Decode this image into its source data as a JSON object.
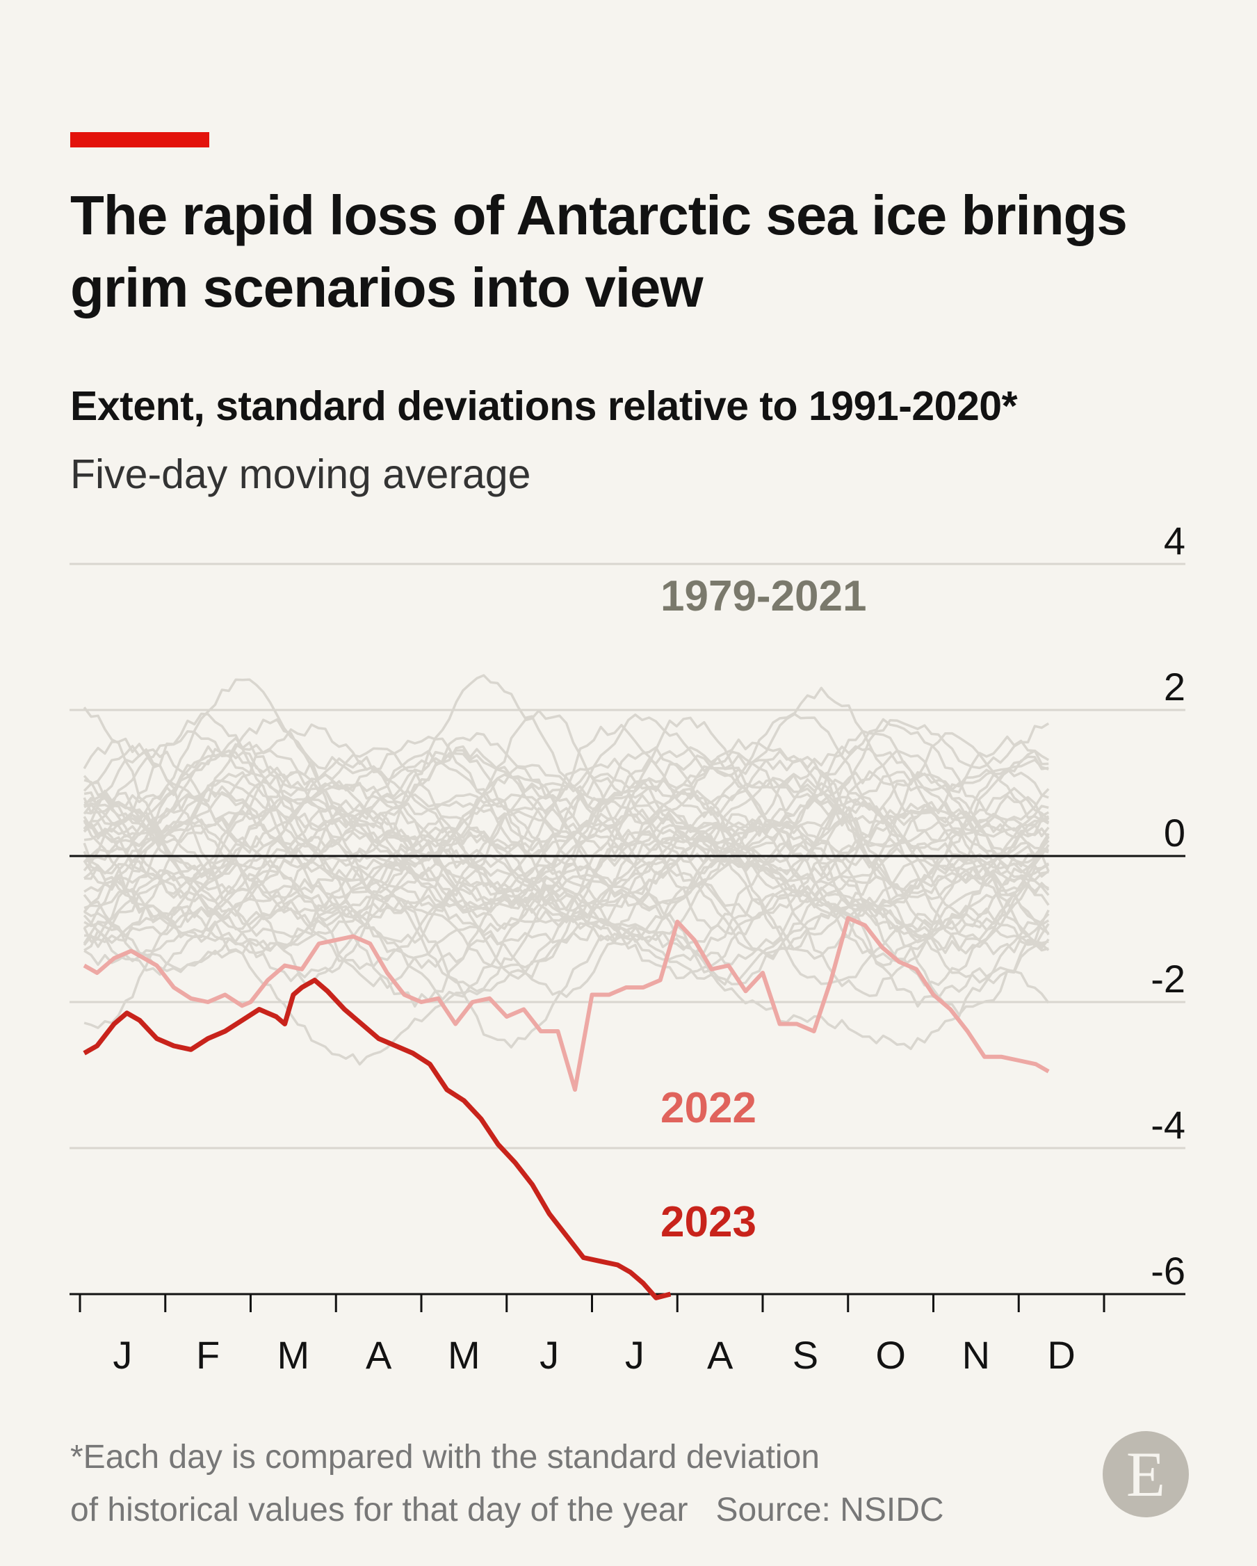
{
  "header": {
    "title": "The rapid loss of Antarctic sea ice brings grim scenarios into view",
    "subtitle": "Extent, standard deviations relative to 1991-2020*",
    "subtitle2": "Five-day moving average"
  },
  "footer": {
    "note_line1": "*Each day is compared with the standard deviation",
    "note_line2": "of historical values for that day of the year",
    "source": "Source: NSIDC",
    "logo_letter": "E"
  },
  "colors": {
    "background": "#f6f4ef",
    "accent": "#e3120b",
    "historical": "#d9d6cf",
    "series_2022": "#eda8a4",
    "series_2023": "#c8231b",
    "label_historical": "#7a796c",
    "zero_line": "#121212",
    "grid": "#d9d6cf"
  },
  "chart_data": {
    "type": "line",
    "x_unit": "month",
    "categories": [
      "J",
      "F",
      "M",
      "A",
      "M",
      "J",
      "J",
      "A",
      "S",
      "O",
      "N",
      "D"
    ],
    "yticks": [
      4,
      2,
      0,
      -2,
      -4,
      -6
    ],
    "ylim": [
      -6,
      4
    ],
    "grid": true,
    "series": [
      {
        "name": "1979-2021",
        "kind": "band",
        "note": "43 grey lines, one per year; values mostly between -3.2 and 2.8",
        "approx_range": [
          -3.2,
          2.8
        ]
      },
      {
        "name": "2022",
        "x": [
          0.05,
          0.2,
          0.4,
          0.6,
          0.9,
          1.1,
          1.3,
          1.5,
          1.7,
          1.9,
          2.0,
          2.2,
          2.4,
          2.6,
          2.8,
          3.0,
          3.2,
          3.4,
          3.6,
          3.8,
          4.0,
          4.2,
          4.4,
          4.6,
          4.8,
          5.0,
          5.2,
          5.4,
          5.6,
          5.8,
          6.0,
          6.2,
          6.4,
          6.6,
          6.8,
          7.0,
          7.2,
          7.4,
          7.6,
          7.8,
          8.0,
          8.2,
          8.4,
          8.6,
          8.8,
          9.0,
          9.2,
          9.4,
          9.6,
          9.8,
          10.0,
          10.2,
          10.4,
          10.6,
          10.8,
          11.0,
          11.2,
          11.35
        ],
        "values": [
          -1.5,
          -1.6,
          -1.4,
          -1.3,
          -1.5,
          -1.8,
          -1.95,
          -2.0,
          -1.9,
          -2.05,
          -2.0,
          -1.7,
          -1.5,
          -1.55,
          -1.2,
          -1.15,
          -1.1,
          -1.2,
          -1.6,
          -1.9,
          -2.0,
          -1.95,
          -2.3,
          -2.0,
          -1.95,
          -2.2,
          -2.1,
          -2.4,
          -2.4,
          -3.2,
          -1.9,
          -1.9,
          -1.8,
          -1.8,
          -1.7,
          -0.9,
          -1.15,
          -1.55,
          -1.5,
          -1.85,
          -1.6,
          -2.3,
          -2.3,
          -2.4,
          -1.7,
          -0.85,
          -0.95,
          -1.25,
          -1.45,
          -1.55,
          -1.9,
          -2.1,
          -2.4,
          -2.75,
          -2.75,
          -2.8,
          -2.85,
          -2.95
        ]
      },
      {
        "name": "2023",
        "x": [
          0.05,
          0.2,
          0.4,
          0.55,
          0.7,
          0.9,
          1.1,
          1.3,
          1.5,
          1.7,
          1.9,
          2.1,
          2.3,
          2.4,
          2.5,
          2.6,
          2.75,
          2.9,
          3.1,
          3.3,
          3.5,
          3.7,
          3.9,
          4.1,
          4.3,
          4.5,
          4.7,
          4.9,
          5.1,
          5.3,
          5.5,
          5.7,
          5.9,
          6.1,
          6.3,
          6.45,
          6.6,
          6.75,
          6.92
        ],
        "values": [
          -2.7,
          -2.6,
          -2.3,
          -2.15,
          -2.25,
          -2.5,
          -2.6,
          -2.65,
          -2.5,
          -2.4,
          -2.25,
          -2.1,
          -2.2,
          -2.3,
          -1.9,
          -1.8,
          -1.7,
          -1.85,
          -2.1,
          -2.3,
          -2.5,
          -2.6,
          -2.7,
          -2.85,
          -3.2,
          -3.35,
          -3.6,
          -3.95,
          -4.2,
          -4.5,
          -4.9,
          -5.2,
          -5.5,
          -5.55,
          -5.6,
          -5.7,
          -5.85,
          -6.05,
          -6.0
        ]
      }
    ],
    "labels": {
      "historical": "1979-2021",
      "s2022": "2022",
      "s2023": "2023"
    }
  }
}
